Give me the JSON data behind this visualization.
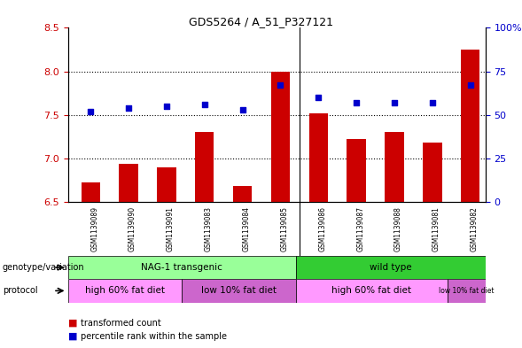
{
  "title": "GDS5264 / A_51_P327121",
  "samples": [
    "GSM1139089",
    "GSM1139090",
    "GSM1139091",
    "GSM1139083",
    "GSM1139084",
    "GSM1139085",
    "GSM1139086",
    "GSM1139087",
    "GSM1139088",
    "GSM1139081",
    "GSM1139082"
  ],
  "red_values": [
    6.72,
    6.94,
    6.9,
    7.3,
    6.68,
    8.0,
    7.52,
    7.22,
    7.3,
    7.18,
    8.25
  ],
  "blue_values": [
    52,
    54,
    55,
    56,
    53,
    67,
    60,
    57,
    57,
    57,
    67
  ],
  "ylim_left": [
    6.5,
    8.5
  ],
  "ylim_right": [
    0,
    100
  ],
  "yticks_left": [
    6.5,
    7.0,
    7.5,
    8.0,
    8.5
  ],
  "yticks_right": [
    0,
    25,
    50,
    75,
    100
  ],
  "ytick_labels_right": [
    "0",
    "25",
    "50",
    "75",
    "100%"
  ],
  "bar_color": "#cc0000",
  "dot_color": "#0000cc",
  "grid_dotted_levels": [
    7.0,
    7.5,
    8.0
  ],
  "divider_x": 5.5,
  "genotype_groups": [
    {
      "label": "NAG-1 transgenic",
      "start": 0,
      "end": 6,
      "color": "#99ff99"
    },
    {
      "label": "wild type",
      "start": 6,
      "end": 11,
      "color": "#33cc33"
    }
  ],
  "protocol_groups": [
    {
      "label": "high 60% fat diet",
      "start": 0,
      "end": 3,
      "color": "#ff99ff"
    },
    {
      "label": "low 10% fat diet",
      "start": 3,
      "end": 6,
      "color": "#cc66cc"
    },
    {
      "label": "high 60% fat diet",
      "start": 6,
      "end": 10,
      "color": "#ff99ff"
    },
    {
      "label": "low 10% fat diet",
      "start": 10,
      "end": 11,
      "color": "#cc66cc"
    }
  ],
  "legend_red": "transformed count",
  "legend_blue": "percentile rank within the sample",
  "genotype_label": "genotype/variation",
  "protocol_label": "protocol",
  "bar_width": 0.5,
  "background_color": "#ffffff",
  "tick_label_color_left": "#cc0000",
  "tick_label_color_right": "#0000cc",
  "xlim": [
    -0.6,
    10.4
  ]
}
